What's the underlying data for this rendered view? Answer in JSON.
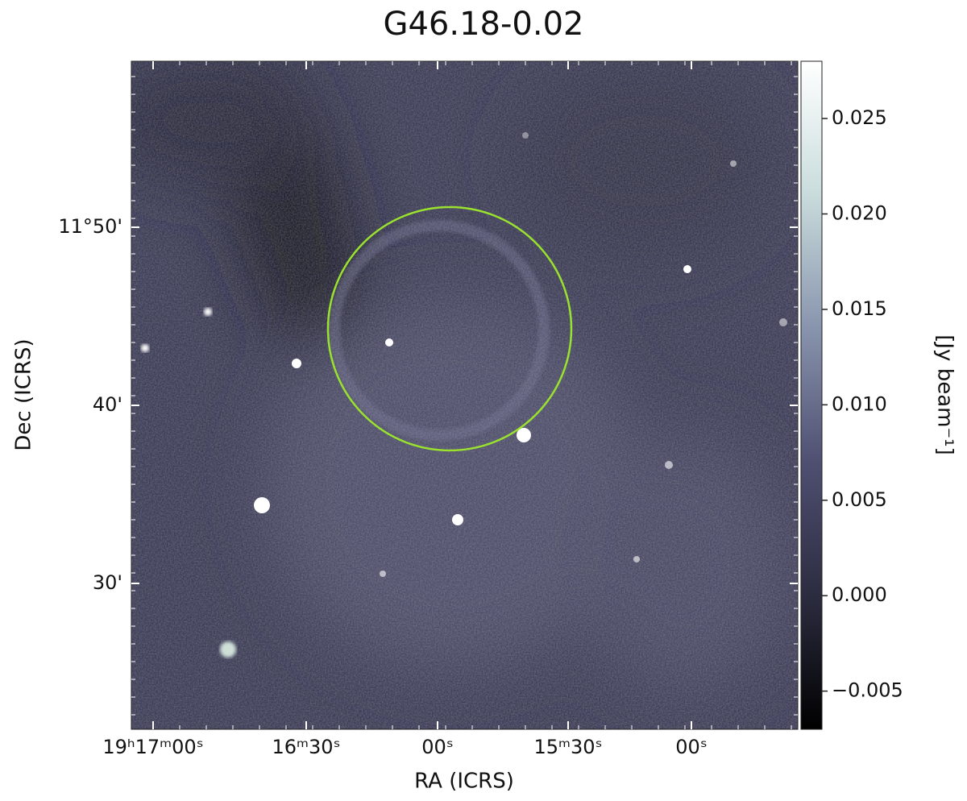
{
  "chart_data": {
    "type": "image",
    "title": "G46.18-0.02",
    "xlabel": "RA (ICRS)",
    "ylabel": "Dec (ICRS)",
    "xtick_labels": [
      "19ʰ17ᵐ00ˢ",
      "16ᵐ30ˢ",
      "00ˢ",
      "15ᵐ30ˢ",
      "00ˢ"
    ],
    "ytick_labels": [
      "11°50'",
      "40'",
      "30'"
    ],
    "region_color": "#9be22e",
    "colorbar": {
      "label": "[Jy beam⁻¹]",
      "lim": [
        -0.007,
        0.028
      ],
      "ticks": [
        {
          "value": -0.005,
          "label": "−0.005"
        },
        {
          "value": 0,
          "label": "0.000"
        },
        0.005,
        {
          "value": 0.01,
          "label": "0.010"
        },
        0.015,
        {
          "value": 0.02,
          "label": "0.020"
        },
        0.025
      ],
      "colormap": [
        "#000000",
        "#2c2c40",
        "#4f4f72",
        "#8894ad",
        "#c9dcdc",
        "#ffffff"
      ]
    }
  }
}
